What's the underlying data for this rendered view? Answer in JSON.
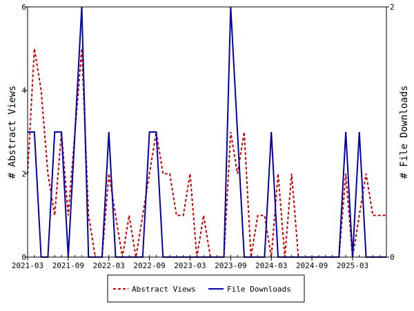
{
  "chart_data": {
    "type": "line",
    "title": "",
    "x_ticks": [
      "2021-03",
      "2021-09",
      "2022-03",
      "2022-09",
      "2023-03",
      "2023-09",
      "2024-03",
      "2024-09",
      "2025-03"
    ],
    "x_range": [
      "2021-03",
      "2025-08"
    ],
    "y_left": {
      "label": "# Abstract Views",
      "ticks": [
        0,
        2,
        4,
        6
      ],
      "range": [
        0,
        6
      ]
    },
    "y_right": {
      "label": "# File Downloads",
      "ticks": [
        0,
        2
      ],
      "range": [
        0,
        2
      ]
    },
    "legend": {
      "position": "bottom"
    },
    "grid": false,
    "series": [
      {
        "name": "Abstract Views",
        "axis": "left",
        "color": "#cc0000",
        "style": "dashed",
        "x": [
          "2021-03",
          "2021-04",
          "2021-05",
          "2021-06",
          "2021-07",
          "2021-08",
          "2021-09",
          "2021-10",
          "2021-11",
          "2021-12",
          "2022-01",
          "2022-02",
          "2022-03",
          "2022-04",
          "2022-05",
          "2022-06",
          "2022-07",
          "2022-08",
          "2022-09",
          "2022-10",
          "2022-11",
          "2022-12",
          "2023-01",
          "2023-02",
          "2023-03",
          "2023-04",
          "2023-05",
          "2023-06",
          "2023-07",
          "2023-08",
          "2023-09",
          "2023-10",
          "2023-11",
          "2023-12",
          "2024-01",
          "2024-02",
          "2024-03",
          "2024-04",
          "2024-05",
          "2024-06",
          "2024-07",
          "2024-08",
          "2024-09",
          "2024-10",
          "2024-11",
          "2024-12",
          "2025-01",
          "2025-02",
          "2025-03",
          "2025-04",
          "2025-05",
          "2025-06",
          "2025-07",
          "2025-08"
        ],
        "y": [
          2,
          5,
          4,
          2,
          1,
          3,
          1,
          3,
          5,
          1,
          0,
          0,
          2,
          1,
          0,
          1,
          0,
          1,
          2,
          3,
          2,
          2,
          1,
          1,
          2,
          0,
          1,
          0,
          0,
          0,
          3,
          2,
          3,
          0,
          1,
          1,
          0,
          2,
          0,
          2,
          0,
          0,
          0,
          0,
          0,
          0,
          0,
          2,
          0,
          1,
          2,
          1,
          1,
          1
        ]
      },
      {
        "name": "File Downloads",
        "axis": "right",
        "color": "#0000aa",
        "style": "solid",
        "x": [
          "2021-03",
          "2021-04",
          "2021-05",
          "2021-06",
          "2021-07",
          "2021-08",
          "2021-09",
          "2021-10",
          "2021-11",
          "2021-12",
          "2022-01",
          "2022-02",
          "2022-03",
          "2022-04",
          "2022-05",
          "2022-06",
          "2022-07",
          "2022-08",
          "2022-09",
          "2022-10",
          "2022-11",
          "2022-12",
          "2023-01",
          "2023-02",
          "2023-03",
          "2023-04",
          "2023-05",
          "2023-06",
          "2023-07",
          "2023-08",
          "2023-09",
          "2023-10",
          "2023-11",
          "2023-12",
          "2024-01",
          "2024-02",
          "2024-03",
          "2024-04",
          "2024-05",
          "2024-06",
          "2024-07",
          "2024-08",
          "2024-09",
          "2024-10",
          "2024-11",
          "2024-12",
          "2025-01",
          "2025-02",
          "2025-03",
          "2025-04",
          "2025-05",
          "2025-06",
          "2025-07",
          "2025-08"
        ],
        "y": [
          1,
          1,
          0,
          0,
          1,
          1,
          0,
          1,
          2,
          0,
          0,
          0,
          1,
          0,
          0,
          0,
          0,
          0,
          1,
          1,
          0,
          0,
          0,
          0,
          0,
          0,
          0,
          0,
          0,
          0,
          2,
          1,
          0,
          0,
          0,
          0,
          1,
          0,
          0,
          0,
          0,
          0,
          0,
          0,
          0,
          0,
          0,
          1,
          0,
          1,
          0,
          0,
          0,
          0
        ]
      }
    ]
  }
}
